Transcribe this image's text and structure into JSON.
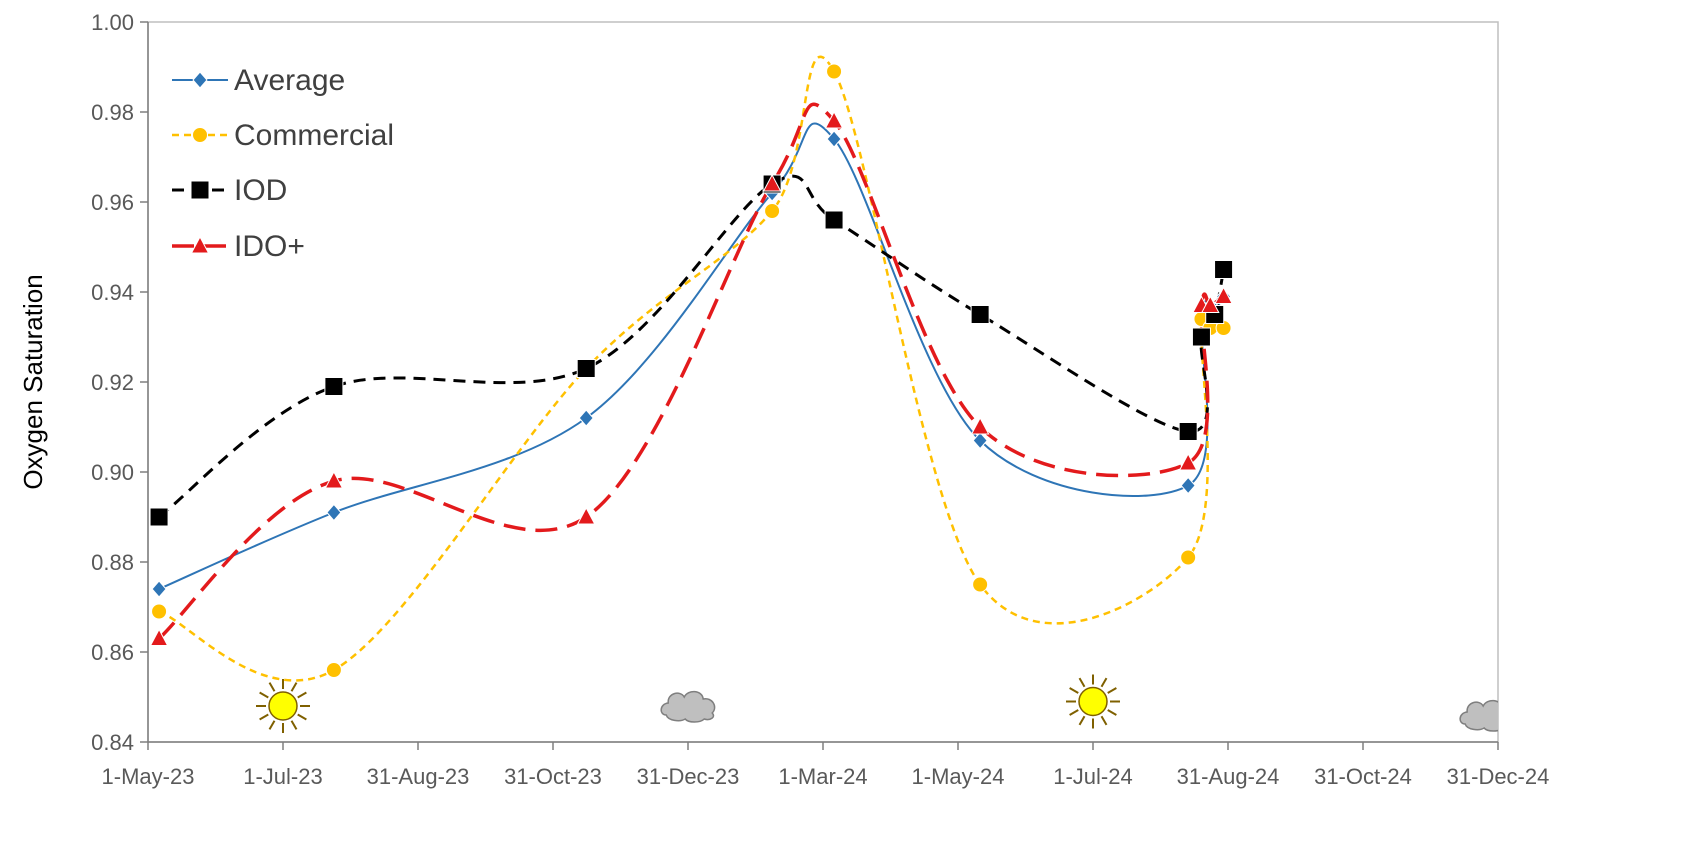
{
  "chart_data": {
    "type": "line",
    "ylabel": "Oxygen Saturation",
    "xlabel": "",
    "ylim": [
      0.84,
      1.0
    ],
    "xlim": [
      "2023-05-01",
      "2024-12-31"
    ],
    "y_ticks": [
      "0.84",
      "0.86",
      "0.88",
      "0.90",
      "0.92",
      "0.94",
      "0.96",
      "0.98",
      "1.00"
    ],
    "x_ticks": [
      {
        "date": "2023-05-01",
        "label": "1-May-23"
      },
      {
        "date": "2023-07-01",
        "label": "1-Jul-23"
      },
      {
        "date": "2023-08-31",
        "label": "31-Aug-23"
      },
      {
        "date": "2023-10-31",
        "label": "31-Oct-23"
      },
      {
        "date": "2023-12-31",
        "label": "31-Dec-23"
      },
      {
        "date": "2024-03-01",
        "label": "1-Mar-24"
      },
      {
        "date": "2024-05-01",
        "label": "1-May-24"
      },
      {
        "date": "2024-07-01",
        "label": "1-Jul-24"
      },
      {
        "date": "2024-08-31",
        "label": "31-Aug-24"
      },
      {
        "date": "2024-10-31",
        "label": "31-Oct-24"
      },
      {
        "date": "2024-12-31",
        "label": "31-Dec-24"
      }
    ],
    "grid": false,
    "legend_position": "top-left",
    "series": [
      {
        "name": "Average",
        "color": "#2E75B6",
        "marker": "diamond",
        "dash": "solid",
        "x": [
          "2023-05-06",
          "2023-07-24",
          "2023-11-15",
          "2024-02-07",
          "2024-03-06",
          "2024-05-11",
          "2024-08-13",
          "2024-08-19",
          "2024-08-25",
          "2024-08-29"
        ],
        "y": [
          0.874,
          0.891,
          0.912,
          0.962,
          0.974,
          0.907,
          0.897,
          0.935,
          0.936,
          0.939
        ]
      },
      {
        "name": "Commercial",
        "color": "#FFC000",
        "marker": "circle",
        "dash": "short-dash",
        "x": [
          "2023-05-06",
          "2023-07-24",
          "2023-11-15",
          "2024-02-07",
          "2024-03-06",
          "2024-05-11",
          "2024-08-13",
          "2024-08-19",
          "2024-08-23",
          "2024-08-29"
        ],
        "y": [
          0.869,
          0.856,
          0.923,
          0.958,
          0.989,
          0.875,
          0.881,
          0.934,
          0.932,
          0.932
        ]
      },
      {
        "name": "IOD",
        "color": "#000000",
        "marker": "square",
        "dash": "dash",
        "x": [
          "2023-05-06",
          "2023-07-24",
          "2023-11-15",
          "2024-02-07",
          "2024-03-06",
          "2024-05-11",
          "2024-08-13",
          "2024-08-19",
          "2024-08-25",
          "2024-08-29"
        ],
        "y": [
          0.89,
          0.919,
          0.923,
          0.964,
          0.956,
          0.935,
          0.909,
          0.93,
          0.935,
          0.945
        ]
      },
      {
        "name": "IDO+",
        "color": "#E31A1C",
        "marker": "triangle",
        "dash": "long-dash",
        "x": [
          "2023-05-06",
          "2023-07-24",
          "2023-11-15",
          "2024-02-07",
          "2024-03-06",
          "2024-05-11",
          "2024-08-13",
          "2024-08-19",
          "2024-08-23",
          "2024-08-29"
        ],
        "y": [
          0.863,
          0.898,
          0.89,
          0.964,
          0.978,
          0.91,
          0.902,
          0.937,
          0.937,
          0.939
        ]
      }
    ],
    "weather_icons": [
      {
        "icon": "sun-icon",
        "date": "2023-07-01",
        "y": 0.848
      },
      {
        "icon": "cloud-icon",
        "date": "2024-01-01",
        "y": 0.848
      },
      {
        "icon": "sun-icon",
        "date": "2024-07-01",
        "y": 0.849
      },
      {
        "icon": "cloud-icon",
        "date": "2024-12-27",
        "y": 0.846
      }
    ]
  }
}
